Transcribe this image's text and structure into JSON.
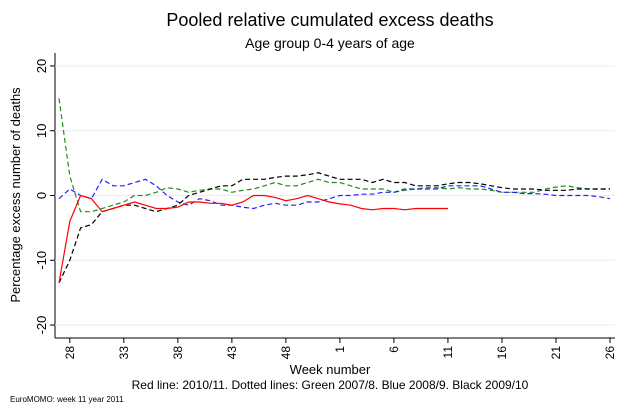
{
  "chart_data": {
    "type": "line",
    "title": "Pooled relative cumulated excess deaths",
    "subtitle": "Age group 0-4 years of age",
    "x_label": "Week number",
    "y_label": "Percentage excess number of deaths",
    "caption": "Red line: 2010/11. Dotted lines: Green 2007/8. Blue 2008/9. Black 2009/10",
    "footer": "EuroMOMO: week 11 year 2011",
    "categories": [
      null,
      "28",
      null,
      null,
      null,
      null,
      "33",
      null,
      null,
      null,
      null,
      "38",
      null,
      null,
      null,
      null,
      "43",
      null,
      null,
      null,
      null,
      "48",
      null,
      null,
      null,
      null,
      "1",
      null,
      null,
      null,
      null,
      "6",
      null,
      null,
      null,
      null,
      "11",
      null,
      null,
      null,
      null,
      "16",
      null,
      null,
      null,
      null,
      "21",
      null,
      null,
      null,
      null,
      "26"
    ],
    "ylim": [
      -22,
      22
    ],
    "yticks": [
      -20,
      -10,
      0,
      10,
      20
    ],
    "grid": true,
    "series": [
      {
        "name": "2010/11",
        "color": "#ff0000",
        "dashed": false,
        "values": [
          -13.5,
          -4,
          0,
          -0.5,
          -2.5,
          -2,
          -1.5,
          -1,
          -1.5,
          -2,
          -2,
          -1.8,
          -1,
          -1,
          -1.2,
          -1.2,
          -1.5,
          -1,
          0,
          0,
          -0.3,
          -0.8,
          -0.5,
          0,
          -0.5,
          -1,
          -1.3,
          -1.5,
          -2,
          -2.2,
          -2,
          -2,
          -2.2,
          -2,
          -2,
          -2,
          -2,
          null,
          null,
          null,
          null,
          null,
          null,
          null,
          null,
          null,
          null,
          null,
          null,
          null,
          null,
          null
        ]
      },
      {
        "name": "2007/8",
        "color": "#228b22",
        "dashed": true,
        "values": [
          15,
          3,
          -2.5,
          -2.5,
          -2,
          -1.5,
          -1,
          0,
          0,
          0.5,
          1.2,
          1,
          0.5,
          0.8,
          1,
          1,
          0.5,
          0.8,
          1,
          1.5,
          2,
          1.5,
          1.5,
          2,
          2.5,
          2,
          2,
          1.5,
          1,
          1,
          1,
          0.5,
          0.8,
          1,
          1.2,
          1.2,
          1,
          1.2,
          1,
          1,
          0.8,
          0.5,
          0.5,
          0.5,
          0.5,
          1,
          1.3,
          1.5,
          1.2,
          1,
          1,
          1
        ]
      },
      {
        "name": "2008/9",
        "color": "#2323ff",
        "dashed": true,
        "values": [
          -0.5,
          1,
          0,
          -0.5,
          2.5,
          1.5,
          1.5,
          2,
          2.5,
          1.5,
          0,
          -1,
          -1.5,
          -0.5,
          -0.8,
          -1.5,
          -1.5,
          -1.8,
          -2,
          -1.5,
          -1.2,
          -1.5,
          -1.5,
          -1,
          -1,
          -0.5,
          0,
          0,
          0.2,
          0.2,
          0.5,
          0.5,
          1,
          1,
          1,
          1,
          1.5,
          1.5,
          1.5,
          1.5,
          1,
          0.5,
          0.5,
          0.3,
          0.3,
          0.2,
          0,
          0,
          0,
          0,
          -0.2,
          -0.5
        ]
      },
      {
        "name": "2009/10",
        "color": "#000000",
        "dashed": true,
        "values": [
          -13.5,
          -10,
          -5,
          -4.5,
          -2.5,
          -2,
          -1.5,
          -1.5,
          -2,
          -2.5,
          -2,
          -1.5,
          0,
          0.5,
          1,
          1.5,
          1.5,
          2.5,
          2.5,
          2.5,
          2.8,
          3,
          3,
          3.2,
          3.5,
          3,
          2.5,
          2.5,
          2.5,
          2,
          2.5,
          2,
          2,
          1.5,
          1.5,
          1.5,
          1.8,
          2,
          2,
          1.8,
          1.5,
          1.2,
          1,
          1,
          1,
          0.8,
          0.8,
          0.8,
          1,
          1,
          1,
          1
        ]
      }
    ]
  }
}
